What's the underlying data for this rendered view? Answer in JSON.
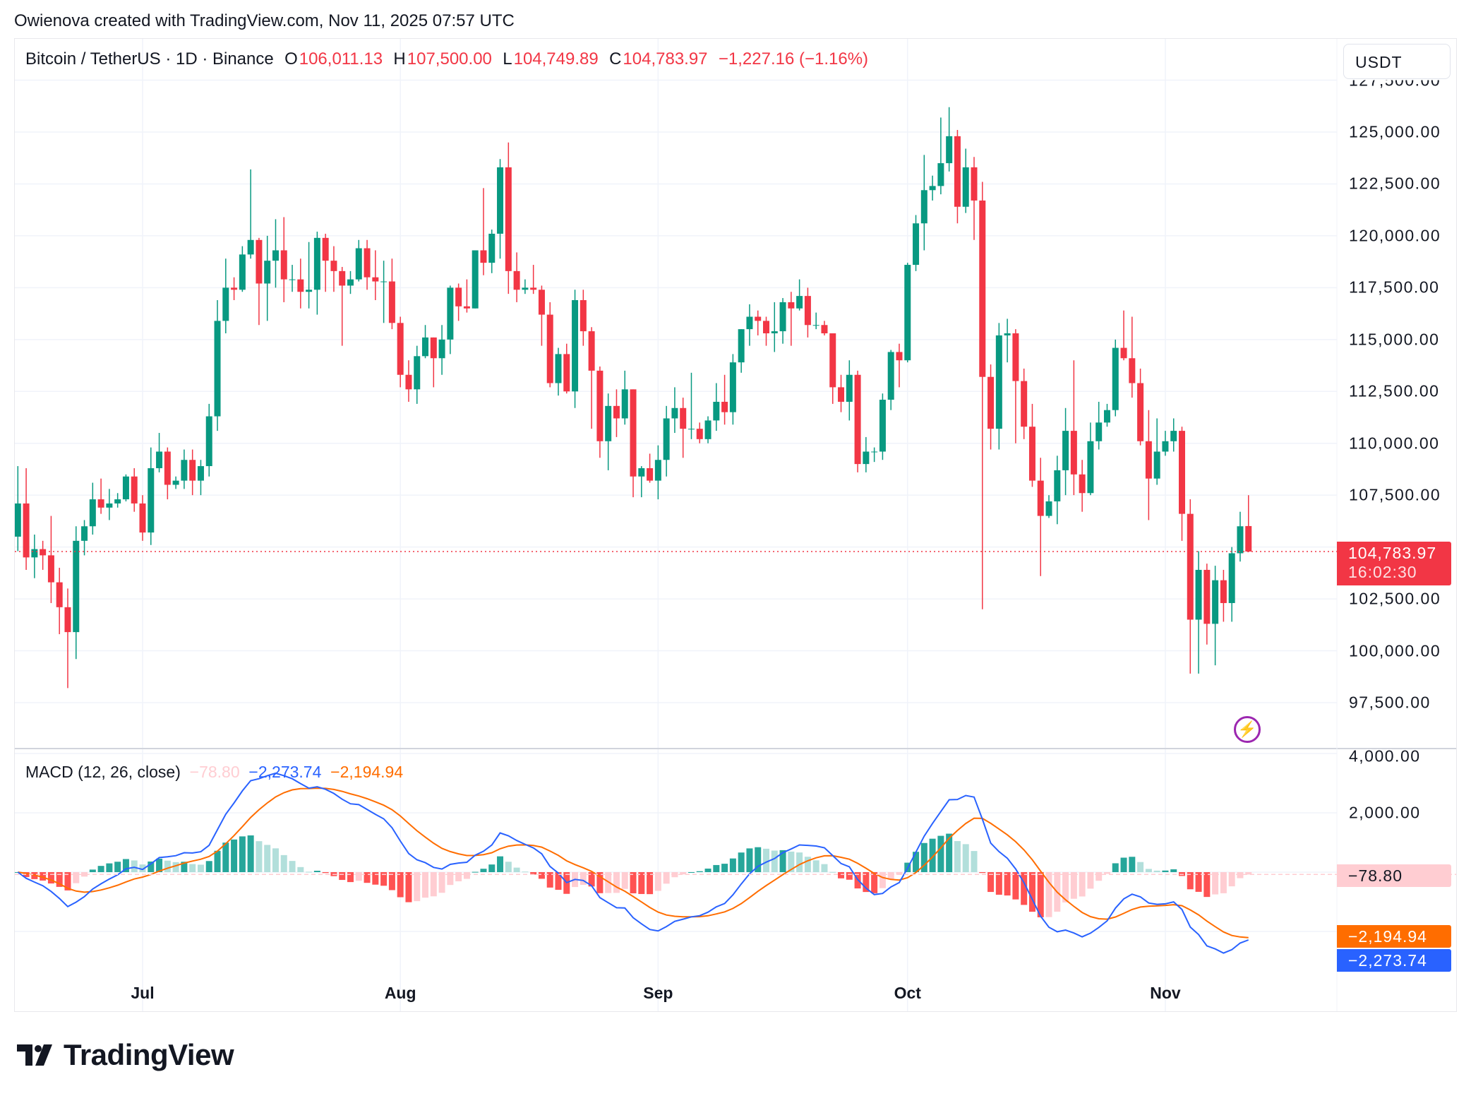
{
  "credit": "Owienova created with TradingView.com, Nov 11, 2025 07:57 UTC",
  "legend": {
    "symbol": "Bitcoin / TetherUS · 1D · Binance",
    "o_label": "O",
    "o": "106,011.13",
    "h_label": "H",
    "h": "107,500.00",
    "l_label": "L",
    "l": "104,749.89",
    "c_label": "C",
    "c": "104,783.97",
    "change": "−1,227.16 (−1.16%)"
  },
  "currency_button": "USDT",
  "last_price": {
    "price": "104,783.97",
    "countdown": "16:02:30"
  },
  "macd_legend": {
    "title": "MACD (12, 26, close)",
    "hist": "−78.80",
    "macd": "−2,273.74",
    "signal": "−2,194.94"
  },
  "macd_tags": {
    "hist": "−78.80",
    "signal": "−2,194.94",
    "macd": "−2,273.74"
  },
  "branding": "TradingView",
  "icons": {
    "lightning": "lightning-icon",
    "logo": "tradingview-logo"
  },
  "colors": {
    "up": "#089981",
    "down": "#F23645",
    "macd": "#2962FF",
    "signal": "#FF6D00",
    "hist_up_strong": "#26A69A",
    "hist_up_weak": "#B2DFDB",
    "hist_down_strong": "#FF5252",
    "hist_down_weak": "#FFCDD2"
  },
  "chart_data": [
    {
      "type": "candlestick",
      "ylim": [
        96000,
        127500
      ],
      "y_ticks": [
        "127,500.00",
        "125,000.00",
        "122,500.00",
        "120,000.00",
        "117,500.00",
        "115,000.00",
        "112,500.00",
        "110,000.00",
        "107,500.00",
        "102,500.00",
        "100,000.00",
        "97,500.00"
      ],
      "y_tick_values": [
        127500,
        125000,
        122500,
        120000,
        117500,
        115000,
        112500,
        110000,
        107500,
        102500,
        100000,
        97500
      ],
      "x_ticks": [
        "Jul",
        "Aug",
        "Sep",
        "Oct",
        "Nov"
      ],
      "x_tick_dates": [
        "Jul 1",
        "Aug 1",
        "Sep 1",
        "Oct 1",
        "Nov 1"
      ],
      "grid": true,
      "last_price": 104783.97,
      "columns": [
        "date",
        "open",
        "high",
        "low",
        "close"
      ],
      "candles": [
        [
          "Jun 16",
          105500,
          108900,
          104800,
          107100
        ],
        [
          "Jun 17",
          107100,
          108800,
          103900,
          104500
        ],
        [
          "Jun 18",
          104500,
          105600,
          103500,
          104900
        ],
        [
          "Jun 19",
          104900,
          105300,
          103900,
          104600
        ],
        [
          "Jun 20",
          104600,
          106500,
          102300,
          103300
        ],
        [
          "Jun 21",
          103300,
          104000,
          100800,
          102100
        ],
        [
          "Jun 22",
          102100,
          103000,
          98200,
          100900
        ],
        [
          "Jun 23",
          100900,
          106000,
          99600,
          105300
        ],
        [
          "Jun 24",
          105300,
          106300,
          104600,
          106000
        ],
        [
          "Jun 25",
          106000,
          108100,
          105600,
          107300
        ],
        [
          "Jun 26",
          107300,
          108300,
          106600,
          106900
        ],
        [
          "Jun 27",
          106900,
          107800,
          106300,
          107100
        ],
        [
          "Jun 28",
          107100,
          107600,
          106900,
          107300
        ],
        [
          "Jun 29",
          107300,
          108500,
          107200,
          108400
        ],
        [
          "Jun 30",
          108400,
          108800,
          106700,
          107100
        ],
        [
          "Jul 1",
          107100,
          107500,
          105300,
          105700
        ],
        [
          "Jul 2",
          105700,
          109800,
          105100,
          108800
        ],
        [
          "Jul 3",
          108800,
          110500,
          108600,
          109600
        ],
        [
          "Jul 4",
          109600,
          109800,
          107300,
          108000
        ],
        [
          "Jul 5",
          108000,
          108400,
          107800,
          108200
        ],
        [
          "Jul 6",
          108200,
          109700,
          107800,
          109200
        ],
        [
          "Jul 7",
          109200,
          109700,
          107500,
          108200
        ],
        [
          "Jul 8",
          108200,
          109200,
          107500,
          108900
        ],
        [
          "Jul 9",
          108900,
          111900,
          108400,
          111300
        ],
        [
          "Jul 10",
          111300,
          116900,
          110600,
          115900
        ],
        [
          "Jul 11",
          115900,
          118900,
          115300,
          117500
        ],
        [
          "Jul 12",
          117500,
          118000,
          116900,
          117400
        ],
        [
          "Jul 13",
          117400,
          119500,
          117300,
          119100
        ],
        [
          "Jul 14",
          119100,
          123200,
          118900,
          119800
        ],
        [
          "Jul 15",
          119800,
          119900,
          115700,
          117700
        ],
        [
          "Jul 16",
          117700,
          120000,
          115900,
          118800
        ],
        [
          "Jul 17",
          118800,
          120800,
          117500,
          119300
        ],
        [
          "Jul 18",
          119300,
          120900,
          116800,
          117900
        ],
        [
          "Jul 19",
          117900,
          118600,
          117300,
          117900
        ],
        [
          "Jul 20",
          117900,
          118900,
          116500,
          117300
        ],
        [
          "Jul 21",
          117300,
          119700,
          116500,
          117400
        ],
        [
          "Jul 22",
          117400,
          120200,
          116200,
          119900
        ],
        [
          "Jul 23",
          119900,
          120100,
          117300,
          118800
        ],
        [
          "Jul 24",
          118800,
          119500,
          117300,
          118300
        ],
        [
          "Jul 25",
          118300,
          118500,
          114700,
          117600
        ],
        [
          "Jul 26",
          117600,
          118300,
          117200,
          117900
        ],
        [
          "Jul 27",
          117900,
          119800,
          117800,
          119400
        ],
        [
          "Jul 28",
          119400,
          119800,
          117400,
          118000
        ],
        [
          "Jul 29",
          118000,
          119300,
          116900,
          117800
        ],
        [
          "Jul 30",
          117800,
          118800,
          115800,
          117800
        ],
        [
          "Jul 31",
          117800,
          118900,
          115500,
          115800
        ],
        [
          "Aug 1",
          115800,
          116100,
          112700,
          113300
        ],
        [
          "Aug 2",
          113300,
          114000,
          112000,
          112600
        ],
        [
          "Aug 3",
          112600,
          114700,
          111900,
          114200
        ],
        [
          "Aug 4",
          114200,
          115700,
          114100,
          115100
        ],
        [
          "Aug 5",
          115100,
          115100,
          112700,
          114100
        ],
        [
          "Aug 6",
          114100,
          115700,
          113300,
          115000
        ],
        [
          "Aug 7",
          115000,
          117600,
          114300,
          117500
        ],
        [
          "Aug 8",
          117500,
          117700,
          115900,
          116600
        ],
        [
          "Aug 9",
          116600,
          117900,
          116300,
          116500
        ],
        [
          "Aug 10",
          116500,
          119300,
          116500,
          119300
        ],
        [
          "Aug 11",
          119300,
          122300,
          118100,
          118700
        ],
        [
          "Aug 12",
          118700,
          120300,
          118200,
          120100
        ],
        [
          "Aug 13",
          120100,
          123700,
          118900,
          123300
        ],
        [
          "Aug 14",
          123300,
          124500,
          117200,
          118300
        ],
        [
          "Aug 15",
          118300,
          119200,
          116800,
          117400
        ],
        [
          "Aug 16",
          117400,
          117900,
          117200,
          117500
        ],
        [
          "Aug 17",
          117500,
          118600,
          117200,
          117400
        ],
        [
          "Aug 18",
          117400,
          117600,
          114700,
          116200
        ],
        [
          "Aug 19",
          116200,
          116800,
          112700,
          112900
        ],
        [
          "Aug 20",
          112900,
          114600,
          112300,
          114300
        ],
        [
          "Aug 21",
          114300,
          114800,
          112400,
          112500
        ],
        [
          "Aug 22",
          112500,
          117400,
          111700,
          116900
        ],
        [
          "Aug 23",
          116900,
          117400,
          114700,
          115400
        ],
        [
          "Aug 24",
          115400,
          115600,
          110700,
          113500
        ],
        [
          "Aug 25",
          113500,
          113700,
          109300,
          110100
        ],
        [
          "Aug 26",
          110100,
          112400,
          108700,
          111800
        ],
        [
          "Aug 27",
          111800,
          112600,
          110300,
          111200
        ],
        [
          "Aug 28",
          111200,
          113500,
          110900,
          112600
        ],
        [
          "Aug 29",
          112600,
          112600,
          107400,
          108400
        ],
        [
          "Aug 30",
          108400,
          108900,
          107400,
          108800
        ],
        [
          "Aug 31",
          108800,
          109500,
          108100,
          108200
        ],
        [
          "Sep 1",
          108200,
          109900,
          107300,
          109200
        ],
        [
          "Sep 2",
          109200,
          111800,
          108400,
          111200
        ],
        [
          "Sep 3",
          111200,
          112700,
          110500,
          111700
        ],
        [
          "Sep 4",
          111700,
          112200,
          109300,
          110700
        ],
        [
          "Sep 5",
          110700,
          113400,
          110200,
          110700
        ],
        [
          "Sep 6",
          110700,
          111000,
          110000,
          110200
        ],
        [
          "Sep 7",
          110200,
          111300,
          110000,
          111100
        ],
        [
          "Sep 8",
          111100,
          112900,
          110600,
          112000
        ],
        [
          "Sep 9",
          112000,
          113300,
          110900,
          111500
        ],
        [
          "Sep 10",
          111500,
          114300,
          110900,
          113900
        ],
        [
          "Sep 11",
          113900,
          115500,
          113400,
          115500
        ],
        [
          "Sep 12",
          115500,
          116700,
          114700,
          116100
        ],
        [
          "Sep 13",
          116100,
          116400,
          115200,
          115900
        ],
        [
          "Sep 14",
          115900,
          116100,
          114700,
          115300
        ],
        [
          "Sep 15",
          115300,
          116800,
          114400,
          115400
        ],
        [
          "Sep 16",
          115400,
          117000,
          114800,
          116800
        ],
        [
          "Sep 17",
          116800,
          117300,
          114700,
          116500
        ],
        [
          "Sep 18",
          116500,
          117900,
          116400,
          117100
        ],
        [
          "Sep 19",
          117100,
          117500,
          115100,
          115700
        ],
        [
          "Sep 20",
          115700,
          116300,
          115500,
          115700
        ],
        [
          "Sep 21",
          115700,
          115900,
          115200,
          115300
        ],
        [
          "Sep 22",
          115300,
          115300,
          111900,
          112700
        ],
        [
          "Sep 23",
          112700,
          113300,
          111500,
          112000
        ],
        [
          "Sep 24",
          112000,
          114000,
          111100,
          113300
        ],
        [
          "Sep 25",
          113300,
          113500,
          108600,
          109000
        ],
        [
          "Sep 26",
          109000,
          110300,
          108600,
          109600
        ],
        [
          "Sep 27",
          109600,
          109800,
          109100,
          109600
        ],
        [
          "Sep 28",
          109600,
          112400,
          109200,
          112100
        ],
        [
          "Sep 29",
          112100,
          114500,
          111600,
          114400
        ],
        [
          "Sep 30",
          114400,
          114800,
          112700,
          114000
        ],
        [
          "Oct 1",
          114000,
          118700,
          113900,
          118600
        ],
        [
          "Oct 2",
          118600,
          121000,
          118300,
          120600
        ],
        [
          "Oct 3",
          120600,
          123900,
          119300,
          122200
        ],
        [
          "Oct 4",
          122200,
          122900,
          121700,
          122400
        ],
        [
          "Oct 5",
          122400,
          125700,
          122000,
          123500
        ],
        [
          "Oct 6",
          123500,
          126200,
          123100,
          124800
        ],
        [
          "Oct 7",
          124800,
          125100,
          120600,
          121400
        ],
        [
          "Oct 8",
          121400,
          124200,
          121100,
          123300
        ],
        [
          "Oct 9",
          123300,
          123800,
          119800,
          121700
        ],
        [
          "Oct 10",
          121700,
          122600,
          102000,
          113200
        ],
        [
          "Oct 11",
          113200,
          113800,
          109700,
          110700
        ],
        [
          "Oct 12",
          110700,
          115800,
          109700,
          115200
        ],
        [
          "Oct 13",
          115200,
          116000,
          113900,
          115300
        ],
        [
          "Oct 14",
          115300,
          115500,
          110000,
          113000
        ],
        [
          "Oct 15",
          113000,
          113600,
          110200,
          110800
        ],
        [
          "Oct 16",
          110800,
          111900,
          107900,
          108200
        ],
        [
          "Oct 17",
          108200,
          109300,
          103600,
          106500
        ],
        [
          "Oct 18",
          106500,
          107500,
          106400,
          107200
        ],
        [
          "Oct 19",
          107200,
          109400,
          106100,
          108700
        ],
        [
          "Oct 20",
          108700,
          111700,
          107500,
          110600
        ],
        [
          "Oct 21",
          110600,
          114000,
          107500,
          108500
        ],
        [
          "Oct 22",
          108500,
          109200,
          106700,
          107600
        ],
        [
          "Oct 23",
          107600,
          111000,
          107500,
          110100
        ],
        [
          "Oct 24",
          110100,
          112000,
          109700,
          111000
        ],
        [
          "Oct 25",
          111000,
          111900,
          110800,
          111600
        ],
        [
          "Oct 26",
          111600,
          115000,
          111300,
          114600
        ],
        [
          "Oct 27",
          114600,
          116400,
          114000,
          114100
        ],
        [
          "Oct 28",
          114100,
          116100,
          112200,
          112900
        ],
        [
          "Oct 29",
          112900,
          113600,
          109900,
          110100
        ],
        [
          "Oct 30",
          110100,
          111600,
          106300,
          108300
        ],
        [
          "Oct 31",
          108300,
          111200,
          108000,
          109600
        ],
        [
          "Nov 1",
          109600,
          110600,
          109400,
          110100
        ],
        [
          "Nov 2",
          110100,
          111200,
          109600,
          110600
        ],
        [
          "Nov 3",
          110600,
          110800,
          105300,
          106600
        ],
        [
          "Nov 4",
          106600,
          107300,
          98900,
          101500
        ],
        [
          "Nov 5",
          101500,
          104800,
          98900,
          103900
        ],
        [
          "Nov 6",
          103900,
          104200,
          100300,
          101300
        ],
        [
          "Nov 7",
          101300,
          104100,
          99300,
          103400
        ],
        [
          "Nov 8",
          103400,
          103900,
          101400,
          102300
        ],
        [
          "Nov 9",
          102300,
          105000,
          101400,
          104700
        ],
        [
          "Nov 10",
          104700,
          106700,
          104300,
          106000
        ],
        [
          "Nov 11",
          106011.13,
          107500,
          104749.89,
          104783.97
        ]
      ]
    },
    {
      "type": "macd",
      "title": "MACD (12, 26, close)",
      "params": {
        "fast": 12,
        "slow": 26,
        "signal": 9,
        "source": "close"
      },
      "ylim": [
        -2900,
        4000
      ],
      "y_ticks": [
        "4,000.00",
        "2,000.00"
      ],
      "y_tick_values": [
        4000,
        2000
      ],
      "last": {
        "histogram": -78.8,
        "macd": -2273.74,
        "signal": -2194.94
      }
    }
  ]
}
